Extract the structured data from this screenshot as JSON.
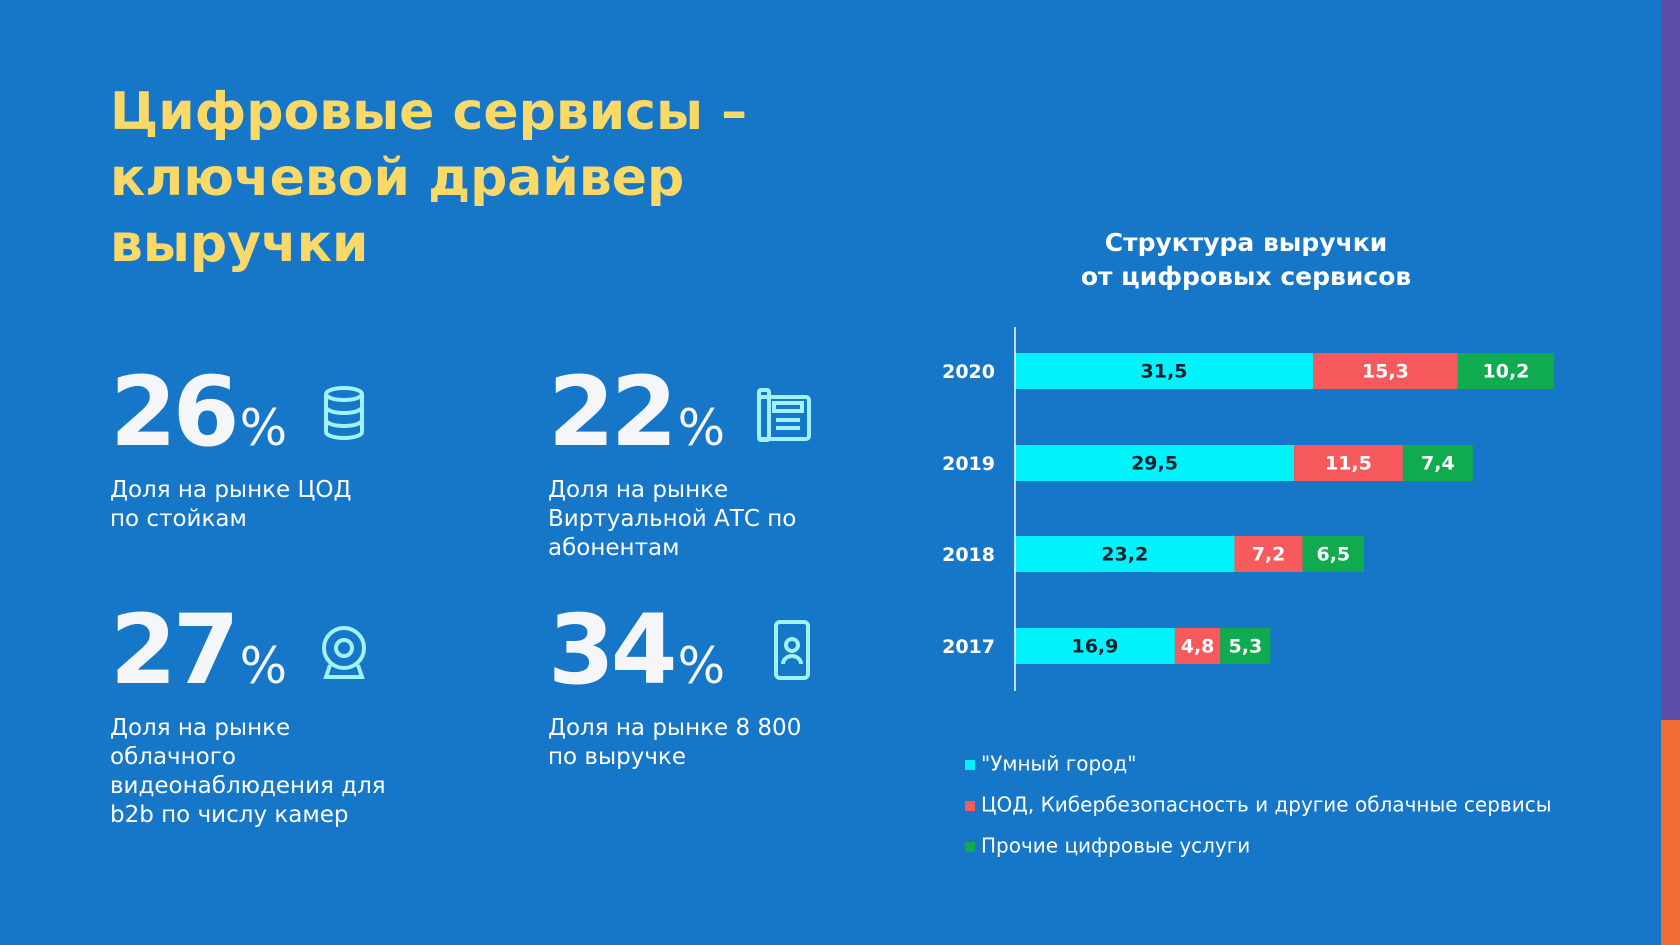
{
  "header": {
    "title": [
      "Цифровые сервисы –",
      "ключевой драйвер",
      "выручки"
    ]
  },
  "stats": [
    {
      "number": "26",
      "unit": "%",
      "label": [
        "Доля на рынке ЦОД",
        "по стойкам"
      ]
    },
    {
      "number": "22",
      "unit": "%",
      "label": [
        "Доля на рынке",
        "Виртуальной АТС по",
        "абонентам"
      ]
    },
    {
      "number": "27",
      "unit": "%",
      "label": [
        "Доля на рынке",
        "облачного",
        "видеонаблюдения для",
        "b2b по числу камер"
      ]
    },
    {
      "number": "34",
      "unit": "%",
      "label": [
        "Доля на рынке 8 800",
        "по выручке"
      ]
    }
  ],
  "chart_data": {
    "type": "bar",
    "orientation": "horizontal",
    "stacked": true,
    "title": [
      "Структура выручки",
      "от цифровых сервисов"
    ],
    "categories": [
      "2020",
      "2019",
      "2018",
      "2017"
    ],
    "series": [
      {
        "name": "\"Умный город\"",
        "color": "#00f3fb",
        "values": [
          31.5,
          29.5,
          23.2,
          16.9
        ],
        "value_labels": [
          "31,5",
          "29,5",
          "23,2",
          "16,9"
        ]
      },
      {
        "name": "ЦОД, Кибербезопасность и другие облачные сервисы",
        "color": "#f65a5c",
        "values": [
          15.3,
          11.5,
          7.2,
          4.8
        ],
        "value_labels": [
          "15,3",
          "11,5",
          "7,2",
          "4,8"
        ]
      },
      {
        "name": "Прочие цифровые услуги",
        "color": "#10aa4f",
        "values": [
          10.2,
          7.4,
          6.5,
          5.3
        ],
        "value_labels": [
          "10,2",
          "7,4",
          "6,5",
          "5,3"
        ]
      }
    ],
    "legend": "bottom"
  }
}
